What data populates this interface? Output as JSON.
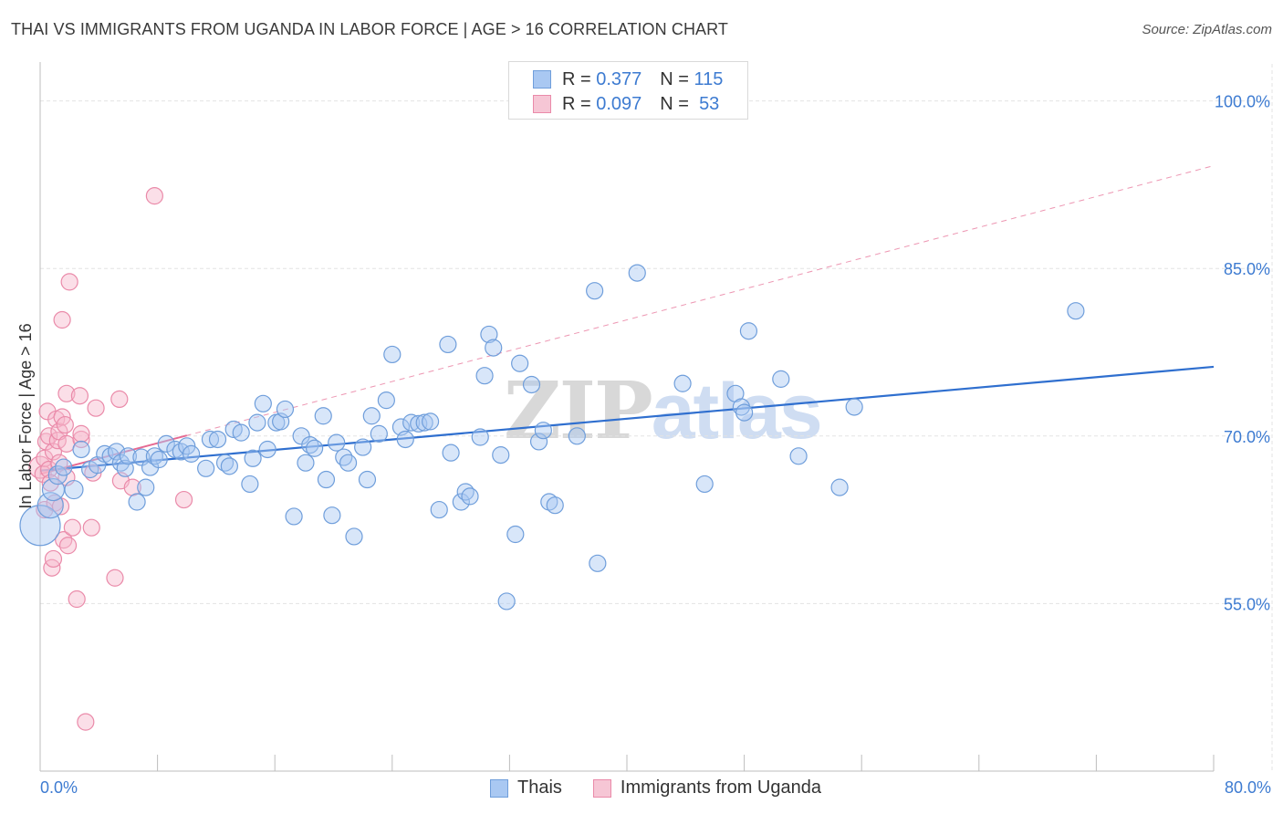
{
  "title": "THAI VS IMMIGRANTS FROM UGANDA IN LABOR FORCE | AGE > 16 CORRELATION CHART",
  "source": "Source: ZipAtlas.com",
  "watermark": {
    "zip": "ZIP",
    "atlas": "atlas"
  },
  "legend": {
    "rows": [
      {
        "r_label": "R =",
        "r_value": "0.377",
        "n_label": "N =",
        "n_value": "115"
      },
      {
        "r_label": "R =",
        "r_value": "0.097",
        "n_label": "N =",
        "n_value": "53"
      }
    ]
  },
  "bottom_legend": {
    "series1": "Thais",
    "series2": "Immigrants from Uganda"
  },
  "colors": {
    "thais_fill": "#a9c8f2",
    "thais_stroke": "#6f9edb",
    "thais_line": "#2f6fcf",
    "uganda_fill": "#f6b9cc",
    "uganda_stroke": "#ea8aa9",
    "uganda_line": "#e66a92",
    "tick_label": "#3d7bd1",
    "grid": "#e3e3e3"
  },
  "chart_data": {
    "type": "scatter",
    "title": "THAI VS IMMIGRANTS FROM UGANDA IN LABOR FORCE | AGE > 16 CORRELATION CHART",
    "xlabel": "",
    "ylabel": "In Labor Force | Age > 16",
    "xlim": [
      0,
      80
    ],
    "ylim": [
      40,
      102.5
    ],
    "x_tick_labels": [
      "0.0%",
      "80.0%"
    ],
    "y_ticks": [
      55,
      70,
      85,
      100
    ],
    "y_tick_labels": [
      "55.0%",
      "70.0%",
      "85.0%",
      "100.0%"
    ],
    "grid": true,
    "legend_position": "top-center",
    "series": [
      {
        "name": "Thais",
        "r": 0.377,
        "n": 115,
        "trend": {
          "x": [
            0,
            80
          ],
          "y": [
            66.9,
            76.2
          ],
          "style": "solid"
        },
        "points": [
          [
            0.0,
            62.0,
            22
          ],
          [
            0.7,
            63.8,
            14
          ],
          [
            0.9,
            65.2,
            12
          ],
          [
            1.2,
            66.5,
            10
          ],
          [
            1.6,
            67.2,
            9
          ],
          [
            2.3,
            65.2,
            10
          ],
          [
            2.8,
            68.8,
            9
          ],
          [
            3.4,
            67.0,
            9
          ],
          [
            3.9,
            67.4,
            9
          ],
          [
            4.4,
            68.4,
            9
          ],
          [
            4.8,
            68.2,
            9
          ],
          [
            5.2,
            68.6,
            9
          ],
          [
            5.5,
            67.6,
            9
          ],
          [
            5.8,
            67.1,
            9
          ],
          [
            6.0,
            68.2,
            9
          ],
          [
            6.6,
            64.1,
            9
          ],
          [
            6.9,
            68.1,
            9
          ],
          [
            7.2,
            65.4,
            9
          ],
          [
            7.5,
            67.2,
            9
          ],
          [
            7.8,
            68.2,
            9
          ],
          [
            8.1,
            67.9,
            9
          ],
          [
            8.6,
            69.3,
            9
          ],
          [
            9.2,
            68.8,
            9
          ],
          [
            9.6,
            68.6,
            9
          ],
          [
            10.0,
            69.1,
            9
          ],
          [
            10.3,
            68.4,
            9
          ],
          [
            11.3,
            67.1,
            9
          ],
          [
            11.6,
            69.7,
            9
          ],
          [
            12.1,
            69.7,
            9
          ],
          [
            12.6,
            67.6,
            9
          ],
          [
            12.9,
            67.3,
            9
          ],
          [
            13.2,
            70.6,
            9
          ],
          [
            13.7,
            70.3,
            9
          ],
          [
            14.3,
            65.7,
            9
          ],
          [
            14.5,
            68.0,
            9
          ],
          [
            14.8,
            71.2,
            9
          ],
          [
            15.2,
            72.9,
            9
          ],
          [
            15.5,
            68.8,
            9
          ],
          [
            16.1,
            71.2,
            9
          ],
          [
            16.4,
            71.3,
            9
          ],
          [
            16.7,
            72.4,
            9
          ],
          [
            17.3,
            62.8,
            9
          ],
          [
            17.8,
            70.0,
            9
          ],
          [
            18.1,
            67.6,
            9
          ],
          [
            18.4,
            69.2,
            9
          ],
          [
            18.7,
            68.9,
            9
          ],
          [
            19.3,
            71.8,
            9
          ],
          [
            19.5,
            66.1,
            9
          ],
          [
            19.9,
            62.9,
            9
          ],
          [
            20.2,
            69.4,
            9
          ],
          [
            20.7,
            68.1,
            9
          ],
          [
            21.0,
            67.6,
            9
          ],
          [
            21.4,
            61.0,
            9
          ],
          [
            22.0,
            69.0,
            9
          ],
          [
            22.3,
            66.1,
            9
          ],
          [
            22.6,
            71.8,
            9
          ],
          [
            23.1,
            70.2,
            9
          ],
          [
            23.6,
            73.2,
            9
          ],
          [
            24.0,
            77.3,
            9
          ],
          [
            24.6,
            70.8,
            9
          ],
          [
            24.9,
            69.7,
            9
          ],
          [
            25.3,
            71.2,
            9
          ],
          [
            25.8,
            71.1,
            9
          ],
          [
            26.2,
            71.2,
            9
          ],
          [
            26.6,
            71.3,
            9
          ],
          [
            27.2,
            63.4,
            9
          ],
          [
            27.8,
            78.2,
            9
          ],
          [
            28.0,
            68.5,
            9
          ],
          [
            28.7,
            64.1,
            9
          ],
          [
            29.0,
            65.0,
            9
          ],
          [
            29.3,
            64.6,
            9
          ],
          [
            30.0,
            69.9,
            9
          ],
          [
            30.3,
            75.4,
            9
          ],
          [
            30.6,
            79.1,
            9
          ],
          [
            30.9,
            77.9,
            9
          ],
          [
            31.4,
            68.3,
            9
          ],
          [
            31.8,
            55.2,
            9
          ],
          [
            32.4,
            61.2,
            9
          ],
          [
            32.7,
            76.5,
            9
          ],
          [
            33.5,
            74.6,
            9
          ],
          [
            34.0,
            69.5,
            9
          ],
          [
            34.3,
            70.5,
            9
          ],
          [
            34.7,
            64.1,
            9
          ],
          [
            35.1,
            63.8,
            9
          ],
          [
            36.6,
            70.0,
            9
          ],
          [
            37.8,
            83.0,
            9
          ],
          [
            38.0,
            58.6,
            9
          ],
          [
            40.7,
            84.6,
            9
          ],
          [
            43.8,
            74.7,
            9
          ],
          [
            45.3,
            65.7,
            9
          ],
          [
            47.4,
            73.8,
            9
          ],
          [
            47.8,
            72.6,
            9
          ],
          [
            48.0,
            72.1,
            9
          ],
          [
            48.3,
            79.4,
            9
          ],
          [
            50.5,
            75.1,
            9
          ],
          [
            51.7,
            68.2,
            9
          ],
          [
            54.5,
            65.4,
            9
          ],
          [
            55.5,
            72.6,
            9
          ],
          [
            70.6,
            81.2,
            9
          ]
        ]
      },
      {
        "name": "Immigrants from Uganda",
        "r": 0.097,
        "n": 53,
        "trend": {
          "x": [
            0,
            80
          ],
          "y": [
            66.6,
            94.2
          ],
          "style": "dashed",
          "solid_until_x": 10
        },
        "points": [
          [
            0.0,
            67.2,
            12
          ],
          [
            0.2,
            66.6,
            9
          ],
          [
            0.3,
            68.0,
            9
          ],
          [
            0.3,
            63.4,
            9
          ],
          [
            0.4,
            69.5,
            9
          ],
          [
            0.5,
            72.2,
            9
          ],
          [
            0.6,
            70.0,
            9
          ],
          [
            0.6,
            67.0,
            9
          ],
          [
            0.7,
            65.8,
            9
          ],
          [
            0.8,
            58.2,
            9
          ],
          [
            0.9,
            59.0,
            9
          ],
          [
            0.9,
            68.6,
            9
          ],
          [
            1.0,
            64.0,
            9
          ],
          [
            1.1,
            71.5,
            9
          ],
          [
            1.2,
            69.6,
            9
          ],
          [
            1.3,
            70.4,
            9
          ],
          [
            1.3,
            67.6,
            9
          ],
          [
            1.4,
            63.7,
            9
          ],
          [
            1.5,
            71.7,
            9
          ],
          [
            1.5,
            80.4,
            9
          ],
          [
            1.6,
            60.7,
            9
          ],
          [
            1.7,
            71.0,
            9
          ],
          [
            1.8,
            69.3,
            9
          ],
          [
            1.8,
            66.3,
            9
          ],
          [
            1.8,
            73.8,
            9
          ],
          [
            1.9,
            60.2,
            9
          ],
          [
            2.0,
            83.8,
            9
          ],
          [
            2.2,
            61.8,
            9
          ],
          [
            2.5,
            55.4,
            9
          ],
          [
            2.7,
            73.6,
            9
          ],
          [
            2.8,
            69.7,
            9
          ],
          [
            2.8,
            70.2,
            9
          ],
          [
            3.5,
            61.8,
            9
          ],
          [
            3.6,
            66.7,
            9
          ],
          [
            3.8,
            72.5,
            9
          ],
          [
            3.1,
            44.4,
            9
          ],
          [
            5.1,
            57.3,
            9
          ],
          [
            5.4,
            73.3,
            9
          ],
          [
            5.5,
            66.0,
            9
          ],
          [
            6.3,
            65.4,
            9
          ],
          [
            7.8,
            91.5,
            9
          ],
          [
            9.8,
            64.3,
            9
          ]
        ]
      }
    ]
  }
}
